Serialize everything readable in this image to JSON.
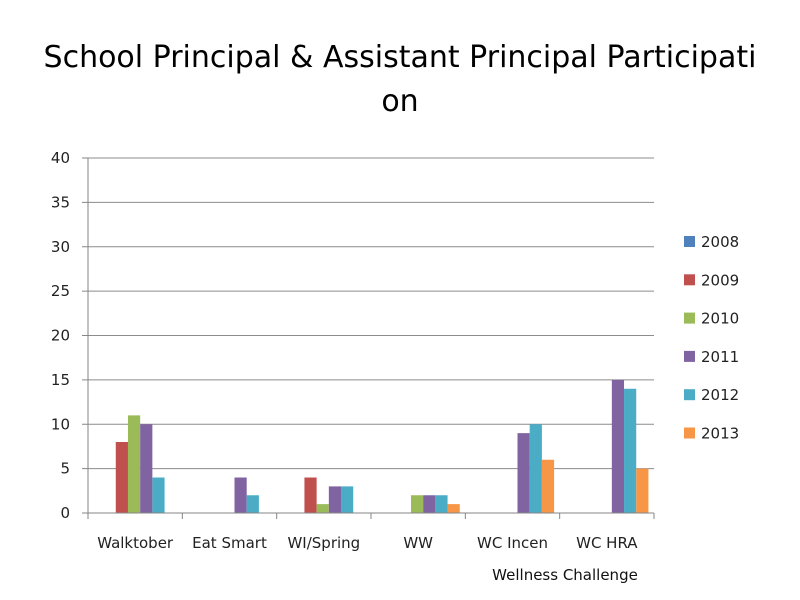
{
  "chart_data": {
    "type": "bar",
    "title_line1": "School Principal & Assistant Principal Participati",
    "title_line2": "on",
    "xlabel": "Wellness Challenge",
    "ylabel": "",
    "ylim": [
      0,
      40
    ],
    "yticks": [
      "0",
      "5",
      "10",
      "15",
      "20",
      "25",
      "30",
      "35",
      "40"
    ],
    "grid": true,
    "legend_position": "right",
    "categories": [
      "Walktober",
      "Eat Smart",
      "WI/Spring",
      "WW",
      "WC Incen",
      "WC HRA"
    ],
    "series": [
      {
        "name": "2008",
        "color": "#4F81BD",
        "values": [
          0,
          0,
          0,
          0,
          0,
          0
        ]
      },
      {
        "name": "2009",
        "color": "#C0504D",
        "values": [
          8,
          0,
          4,
          0,
          0,
          0
        ]
      },
      {
        "name": "2010",
        "color": "#9BBB59",
        "values": [
          11,
          0,
          1,
          2,
          0,
          0
        ]
      },
      {
        "name": "2011",
        "color": "#8064A2",
        "values": [
          10,
          4,
          3,
          2,
          9,
          15
        ]
      },
      {
        "name": "2012",
        "color": "#4BACC6",
        "values": [
          4,
          2,
          3,
          2,
          10,
          14
        ]
      },
      {
        "name": "2013",
        "color": "#F79646",
        "values": [
          0,
          0,
          0,
          1,
          6,
          5
        ]
      }
    ]
  }
}
